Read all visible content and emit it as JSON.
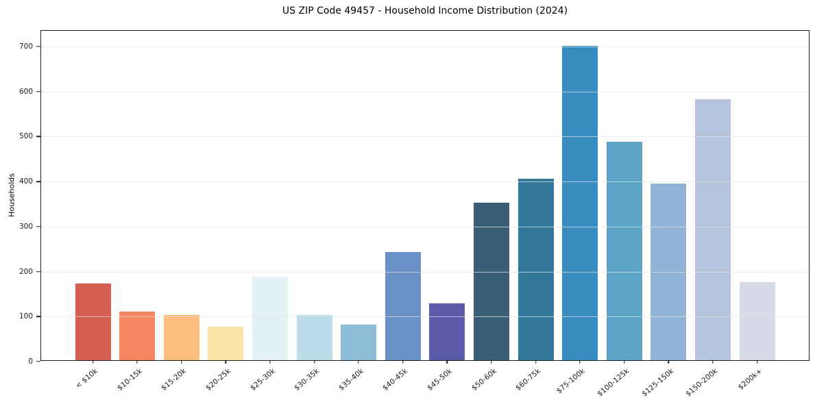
{
  "chart_data": {
    "type": "bar",
    "title": "US ZIP Code 49457 - Household Income Distribution (2024)",
    "xlabel": "",
    "ylabel": "Households",
    "categories": [
      "< $10k",
      "$10-15k",
      "$15-20k",
      "$20-25k",
      "$25-30k",
      "$30-35k",
      "$35-40k",
      "$40-45k",
      "$45-50k",
      "$50-60k",
      "$60-75k",
      "$75-100k",
      "$100-125k",
      "$125-150k",
      "$150-200k",
      "$200k+"
    ],
    "values": [
      171,
      108,
      100,
      75,
      185,
      101,
      79,
      240,
      127,
      350,
      403,
      698,
      486,
      393,
      580,
      173
    ],
    "bar_colors": [
      "#d65f51",
      "#f4875f",
      "#fcbe7e",
      "#fce3a6",
      "#e4f1f5",
      "#badde9",
      "#8fbcd8",
      "#6991c5",
      "#5b5baa",
      "#395f77",
      "#33779a",
      "#388dc0",
      "#5ca5c9",
      "#91b4d7",
      "#b6c5de",
      "#d7dae7"
    ],
    "ylim": [
      0,
      735
    ],
    "yticks": [
      0,
      100,
      200,
      300,
      400,
      500,
      600,
      700
    ],
    "grid": true,
    "legend_position": "none",
    "axis_color": "#1a1a1a",
    "background_color": "#ffffff"
  }
}
